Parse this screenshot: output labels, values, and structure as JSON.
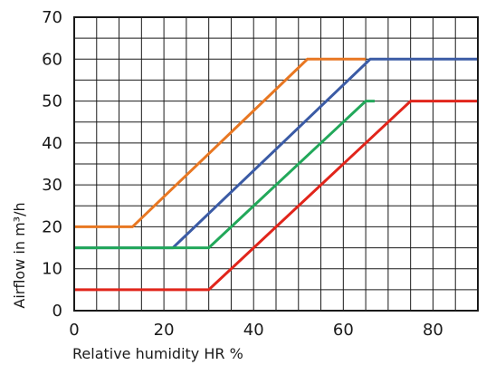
{
  "chart_data": {
    "type": "line",
    "xlabel": "Relative humidity HR %",
    "ylabel": "Airflow in m³/h",
    "xlim": [
      0,
      90
    ],
    "ylim": [
      0,
      70
    ],
    "x_ticks": [
      0,
      20,
      40,
      60,
      80
    ],
    "y_ticks": [
      0,
      10,
      20,
      30,
      40,
      50,
      60,
      70
    ],
    "grid": true,
    "x_grid_step": 5,
    "y_grid_step": 5,
    "series": [
      {
        "color": "#e87722",
        "points": [
          [
            0,
            20
          ],
          [
            13,
            20
          ],
          [
            52,
            60
          ],
          [
            65,
            60
          ]
        ]
      },
      {
        "color": "#3b5ba5",
        "points": [
          [
            0,
            15
          ],
          [
            22,
            15
          ],
          [
            66,
            60
          ],
          [
            90,
            60
          ]
        ]
      },
      {
        "color": "#22a85a",
        "points": [
          [
            0,
            15
          ],
          [
            21,
            15
          ],
          [
            30,
            15
          ],
          [
            65,
            50
          ],
          [
            67,
            50
          ]
        ]
      },
      {
        "color": "#e1251b",
        "points": [
          [
            0,
            5
          ],
          [
            30,
            5
          ],
          [
            75,
            50
          ],
          [
            90,
            50
          ]
        ]
      }
    ]
  }
}
